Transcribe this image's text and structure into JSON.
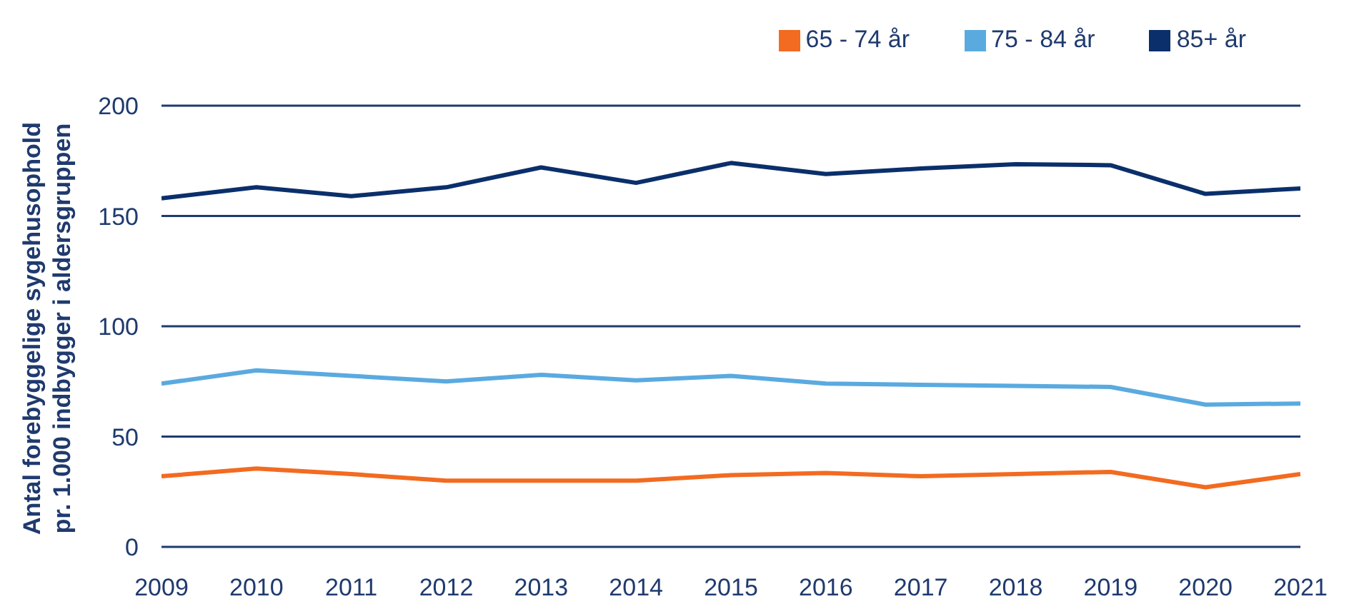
{
  "chart_data": {
    "type": "line",
    "ylabel": "Antal forebyggelige sygehusophold\npr. 1.000 indbygger i aldersgruppen",
    "x": [
      2009,
      2010,
      2011,
      2012,
      2013,
      2014,
      2015,
      2016,
      2017,
      2018,
      2019,
      2020,
      2021
    ],
    "xlim": [
      2009,
      2021
    ],
    "xticks": [
      2009,
      2010,
      2011,
      2012,
      2013,
      2014,
      2015,
      2016,
      2017,
      2018,
      2019,
      2020,
      2021
    ],
    "ylim": [
      0,
      200
    ],
    "yticks": [
      0,
      50,
      100,
      150,
      200
    ],
    "grid": "y",
    "legend": "top right",
    "marker": "none",
    "line_style": "solid",
    "series": [
      {
        "name": "65 - 74 år",
        "color": "#f26b21",
        "values": [
          32,
          35.5,
          33,
          30,
          30,
          30,
          32.5,
          33.5,
          32,
          33,
          34,
          27,
          33
        ]
      },
      {
        "name": "75 - 84 år",
        "color": "#5aaae0",
        "values": [
          74,
          80,
          77.5,
          75,
          78,
          75.5,
          77.5,
          74,
          73.5,
          73,
          72.5,
          64.5,
          65
        ]
      },
      {
        "name": "85+ år",
        "color": "#0a2f6b",
        "values": [
          158,
          163,
          159,
          163,
          172,
          165,
          174,
          169,
          171.5,
          173.5,
          173,
          160,
          162.5
        ]
      }
    ]
  }
}
